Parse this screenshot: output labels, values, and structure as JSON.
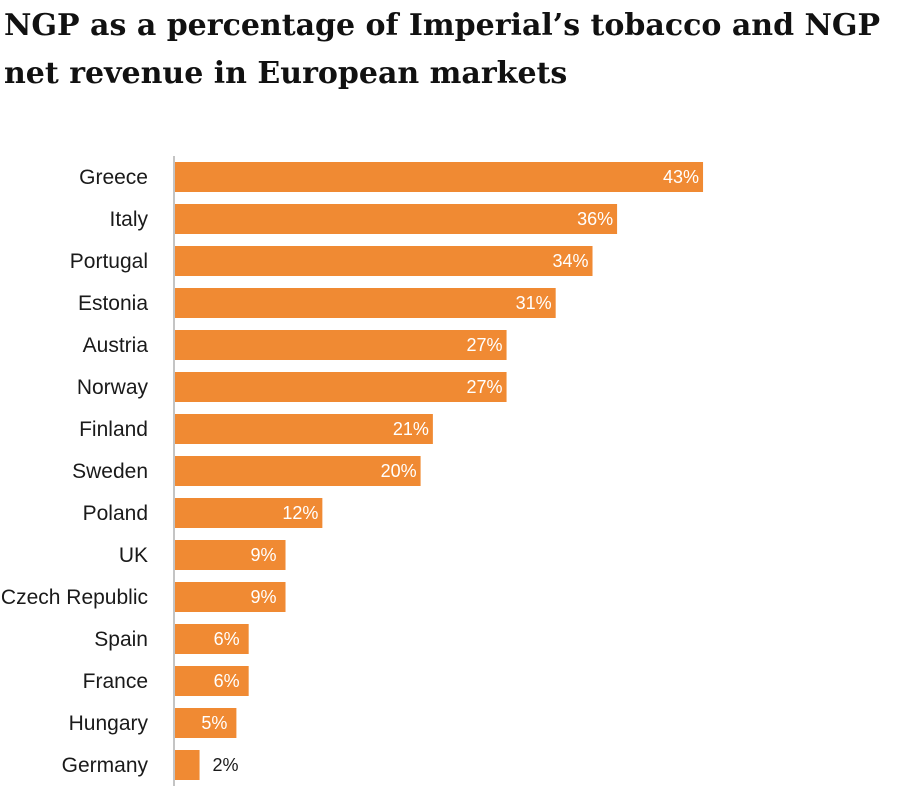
{
  "title": "NGP as a percentage of Imperial’s tobacco and NGP net revenue in European markets",
  "colors": {
    "bar": "#F08A33",
    "axis": "#888888",
    "label_inside": "#ffffff",
    "label_outside": "#1a1a1a"
  },
  "chart_data": {
    "type": "bar",
    "orientation": "horizontal",
    "title": "NGP as a percentage of Imperial’s tobacco and NGP net revenue in European markets",
    "categories": [
      "Greece",
      "Italy",
      "Portugal",
      "Estonia",
      "Austria",
      "Norway",
      "Finland",
      "Sweden",
      "Poland",
      "UK",
      "Czech Republic",
      "Spain",
      "France",
      "Hungary",
      "Germany"
    ],
    "values": [
      43,
      36,
      34,
      31,
      27,
      27,
      21,
      20,
      12,
      9,
      9,
      6,
      6,
      5,
      2
    ],
    "value_labels": [
      "43%",
      "36%",
      "34%",
      "31%",
      "27%",
      "27%",
      "21%",
      "20%",
      "12%",
      "9%",
      "9%",
      "6%",
      "6%",
      "5%",
      "2%"
    ],
    "unit": "%",
    "grid": false
  }
}
